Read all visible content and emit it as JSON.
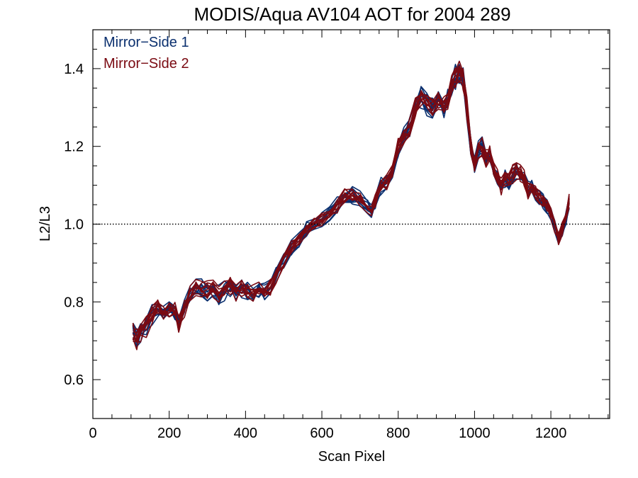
{
  "chart_data": {
    "type": "line",
    "title": "MODIS/Aqua AV104 AOT for 2004 289",
    "xlabel": "Scan Pixel",
    "ylabel": "L2/L3",
    "xlim": [
      0,
      1354
    ],
    "ylim": [
      0.5,
      1.5
    ],
    "xticks": [
      0,
      200,
      400,
      600,
      800,
      1000,
      1200
    ],
    "yticks": [
      0.6,
      0.8,
      1.0,
      1.2,
      1.4
    ],
    "xtick_labels": [
      "0",
      "200",
      "400",
      "600",
      "800",
      "1000",
      "1200"
    ],
    "ytick_labels": [
      "0.6",
      "0.8",
      "1.0",
      "1.2",
      "1.4"
    ],
    "reference_line": {
      "y": 1.0,
      "style": "dotted"
    },
    "grid": false,
    "legend_position": "top-left",
    "series": [
      {
        "name": "Mirror−Side 1",
        "color": "#0a2f6e"
      },
      {
        "name": "Mirror−Side 2",
        "color": "#7a0a12"
      }
    ],
    "lines_per_series": 10,
    "x": [
      105,
      115,
      125,
      140,
      155,
      170,
      185,
      200,
      215,
      225,
      240,
      255,
      270,
      285,
      300,
      315,
      330,
      345,
      360,
      375,
      390,
      405,
      420,
      435,
      450,
      465,
      480,
      500,
      520,
      540,
      560,
      580,
      600,
      620,
      640,
      660,
      680,
      700,
      720,
      730,
      740,
      755,
      770,
      785,
      800,
      815,
      830,
      845,
      860,
      875,
      890,
      905,
      920,
      930,
      940,
      950,
      960,
      970,
      980,
      990,
      1000,
      1010,
      1020,
      1030,
      1040,
      1050,
      1060,
      1070,
      1080,
      1090,
      1100,
      1110,
      1120,
      1130,
      1140,
      1150,
      1160,
      1170,
      1180,
      1190,
      1200,
      1210,
      1220,
      1230,
      1240,
      1248
    ],
    "mean_y": [
      0.725,
      0.705,
      0.72,
      0.74,
      0.77,
      0.785,
      0.78,
      0.785,
      0.775,
      0.745,
      0.79,
      0.82,
      0.84,
      0.835,
      0.83,
      0.835,
      0.82,
      0.83,
      0.84,
      0.825,
      0.835,
      0.83,
      0.82,
      0.83,
      0.825,
      0.84,
      0.87,
      0.91,
      0.94,
      0.96,
      0.99,
      1.0,
      1.01,
      1.03,
      1.05,
      1.07,
      1.075,
      1.065,
      1.045,
      1.04,
      1.06,
      1.1,
      1.11,
      1.14,
      1.2,
      1.23,
      1.25,
      1.3,
      1.33,
      1.31,
      1.3,
      1.32,
      1.3,
      1.32,
      1.36,
      1.38,
      1.39,
      1.37,
      1.3,
      1.2,
      1.15,
      1.19,
      1.2,
      1.17,
      1.18,
      1.14,
      1.12,
      1.1,
      1.12,
      1.11,
      1.13,
      1.14,
      1.13,
      1.12,
      1.09,
      1.1,
      1.08,
      1.07,
      1.06,
      1.05,
      1.03,
      1.0,
      0.96,
      0.99,
      1.02,
      1.06
    ]
  }
}
